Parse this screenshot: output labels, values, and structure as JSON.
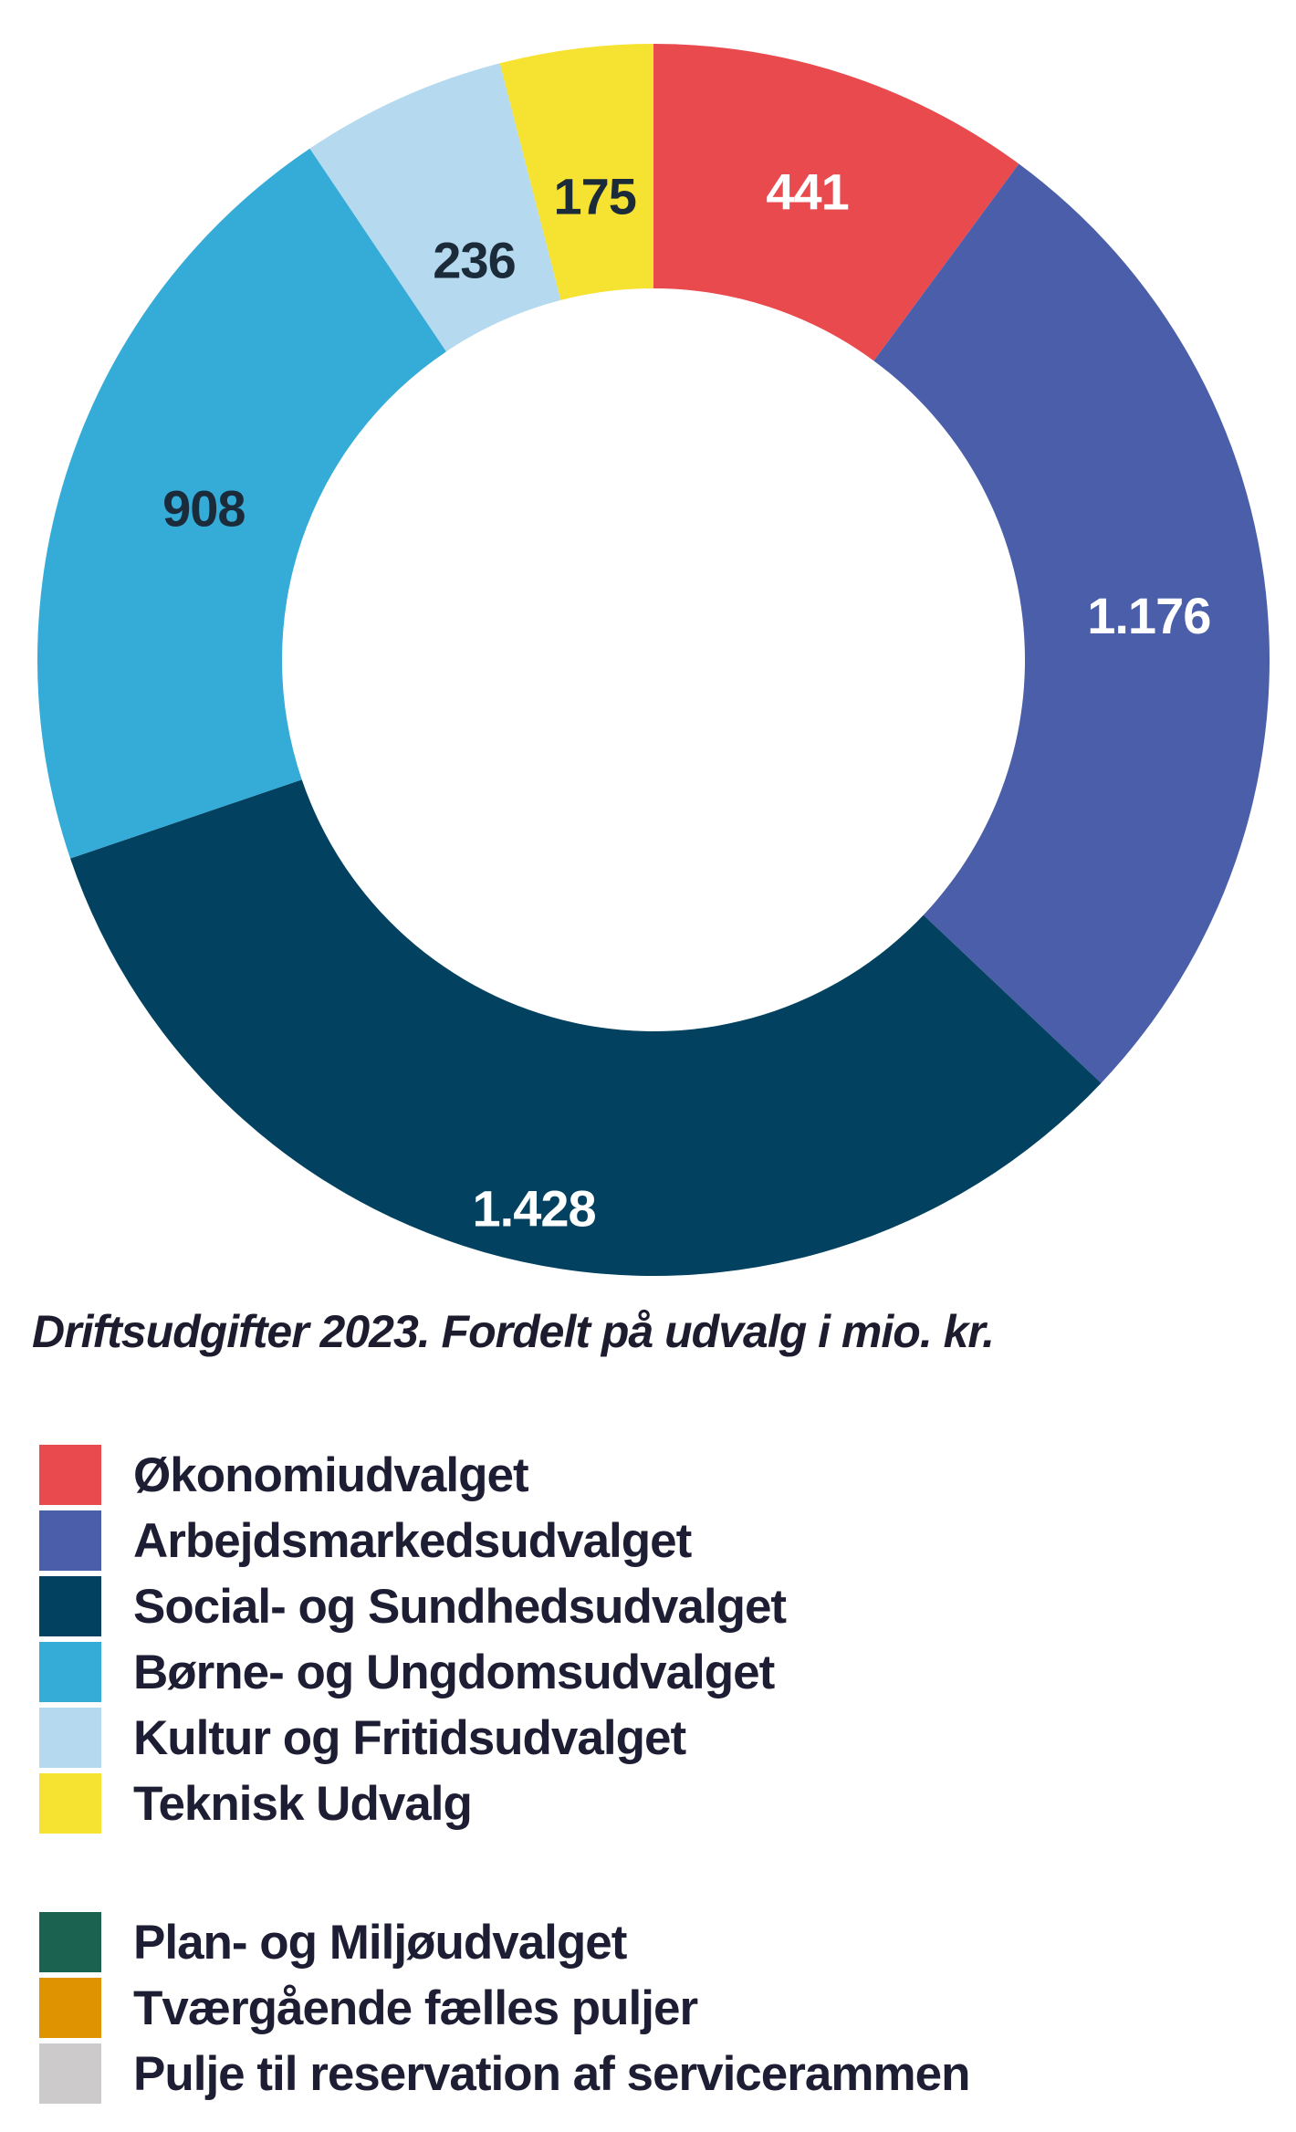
{
  "caption": "Driftsudgifter 2023. Fordelt på udvalg i mio. kr.",
  "chart_data": {
    "type": "pie",
    "subtype": "donut",
    "title": "Driftsudgifter 2023. Fordelt på udvalg i mio. kr.",
    "unit": "mio. kr.",
    "start_angle_deg": 0,
    "direction": "clockwise",
    "slices": [
      {
        "label": "Økonomiudvalget",
        "value": 441,
        "display": "441",
        "color": "#e84a4e",
        "text_color": "#ffffff"
      },
      {
        "label": "Arbejdsmarkedsudvalget",
        "value": 1176,
        "display": "1.176",
        "color": "#4a5ea9",
        "text_color": "#ffffff"
      },
      {
        "label": "Social- og Sundhedsudvalget",
        "value": 1428,
        "display": "1.428",
        "color": "#02415f",
        "text_color": "#ffffff"
      },
      {
        "label": "Børne- og Ungdomsudvalget",
        "value": 908,
        "display": "908",
        "color": "#35acd8",
        "text_color": "#1c2b3a"
      },
      {
        "label": "Kultur og Fritidsudvalget",
        "value": 236,
        "display": "236",
        "color": "#b5d9ee",
        "text_color": "#1c2b3a"
      },
      {
        "label": "Teknisk Udvalg",
        "value": 175,
        "display": "175",
        "color": "#f6e230",
        "text_color": "#1c2b3a"
      }
    ],
    "legend_extra": [
      {
        "label": "Plan- og Miljøudvalget",
        "color": "#1b6350"
      },
      {
        "label": "Tværgående fælles puljer",
        "color": "#df9300"
      },
      {
        "label": "Pulje til reservation af servicerammen",
        "color": "#cccaca"
      }
    ]
  }
}
